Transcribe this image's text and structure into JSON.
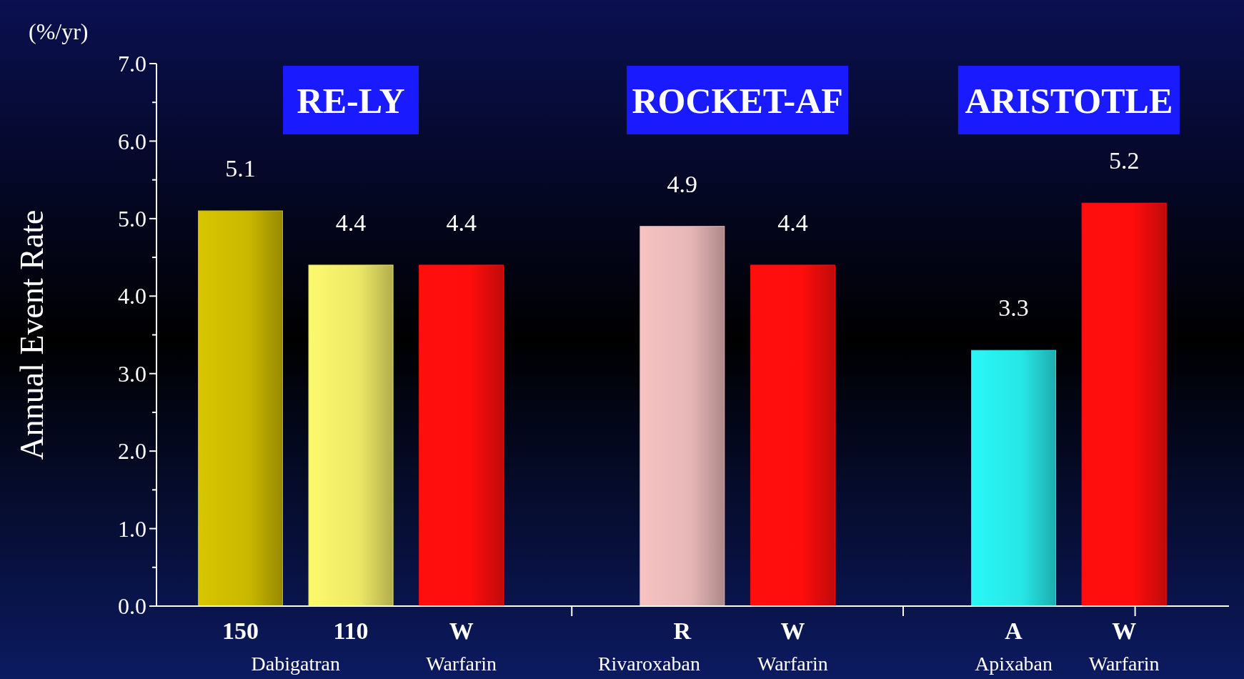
{
  "chart_data": {
    "type": "bar",
    "ylabel": "Annual Event Rate",
    "categories": [
      "150",
      "110",
      "W",
      null,
      "R",
      "W",
      null,
      "A",
      "W"
    ],
    "values": [
      5.1,
      4.4,
      4.4,
      null,
      4.9,
      4.4,
      null,
      3.3,
      5.2
    ],
    "colors": [
      "#c9b800",
      "#ece866",
      "#ff0d0d",
      "#e6b6b6",
      "#e6b6b6",
      "#ff0d0d",
      "#ff0d0d",
      "#27e6e6",
      "#ff0d0d"
    ],
    "ylim": [
      0,
      7
    ],
    "yticks": [
      {
        "value": 0,
        "label": "0.0"
      },
      {
        "value": 1,
        "label": "1.0"
      },
      {
        "value": 2,
        "label": "2.0"
      },
      {
        "value": 3,
        "label": "3.0"
      },
      {
        "value": 4,
        "label": "4.0"
      },
      {
        "value": 5,
        "label": "5.0"
      },
      {
        "value": 6,
        "label": "6.0"
      },
      {
        "value": 7,
        "label": "7.0"
      }
    ],
    "data_labels": true,
    "annotations": [
      "(%/yr)",
      "RE-LY",
      "ROCKET-AF",
      "ARISTOTLE",
      "Dabigatran",
      "Warfarin",
      "Rivaroxaban",
      "Warfarin",
      "Apixaban",
      "Warfarin"
    ]
  }
}
